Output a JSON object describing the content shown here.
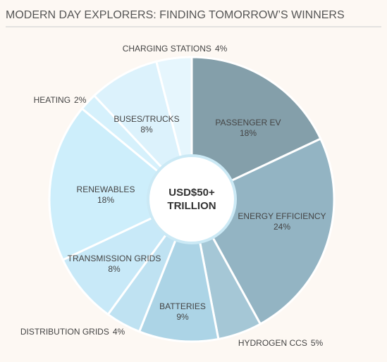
{
  "chart_data": {
    "type": "donut",
    "title": "MODERN DAY EXPLORERS: FINDING TOMORROW’S WINNERS",
    "center_label": [
      "USD$50+",
      "TRILLION"
    ],
    "categories": [
      "PASSENGER EV",
      "ENERGY EFFICIENCY",
      "HYDROGEN CCS",
      "BATTERIES",
      "DISTRIBUTION GRIDS",
      "TRANSMISSION GRIDS",
      "RENEWABLES",
      "HEATING",
      "BUSES/TRUCKS",
      "CHARGING STATIONS"
    ],
    "values": [
      18,
      24,
      5,
      9,
      4,
      8,
      18,
      2,
      8,
      4
    ],
    "value_labels": [
      "18%",
      "24%",
      "5%",
      "9%",
      "4%",
      "8%",
      "18%",
      "2%",
      "8%",
      "4%"
    ],
    "colors": [
      "#849faa",
      "#93b4c3",
      "#a5c7d6",
      "#acd4e6",
      "#bfe2f2",
      "#c8e9f8",
      "#cdeefb",
      "#d6f1fc",
      "#dcf2fc",
      "#e6f6fd"
    ]
  }
}
